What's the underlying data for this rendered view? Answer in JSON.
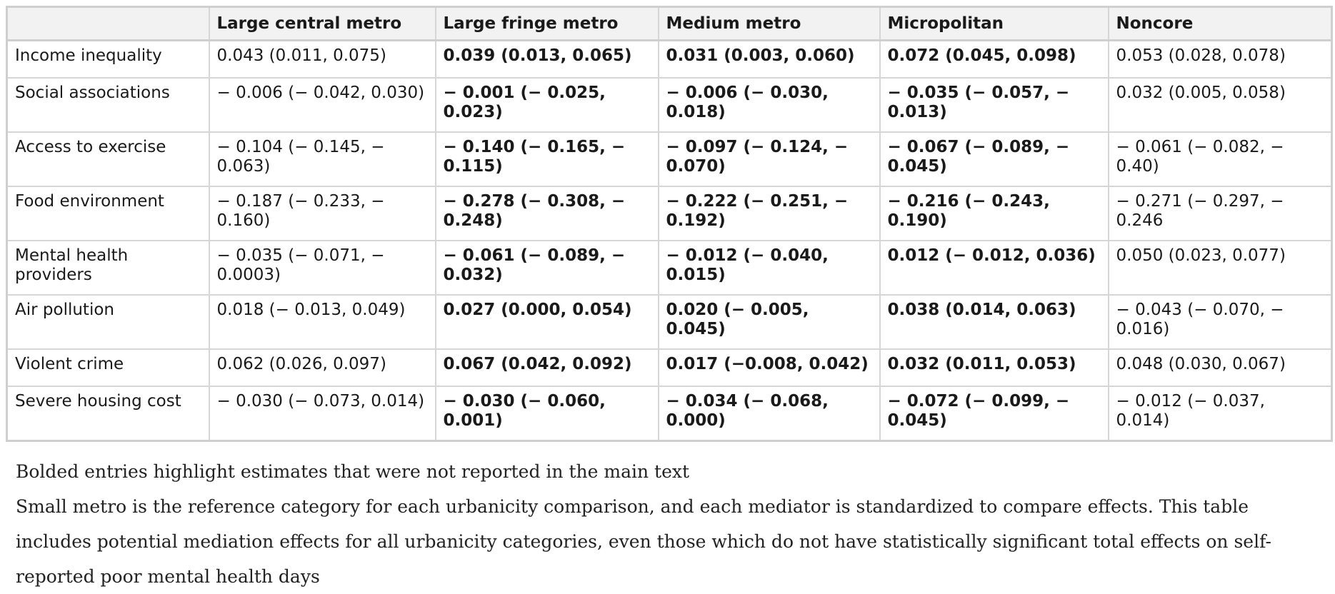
{
  "table": {
    "headers": [
      "",
      "Large central metro",
      "Large fringe metro",
      "Medium metro",
      "Micropolitan",
      "Noncore"
    ],
    "rows": [
      {
        "label": "Income inequality",
        "cells": [
          {
            "text": "0.043 (0.011, 0.075)",
            "bold": false
          },
          {
            "text": "0.039 (0.013, 0.065)",
            "bold": true
          },
          {
            "text": "0.031 (0.003, 0.060)",
            "bold": true
          },
          {
            "text": "0.072 (0.045, 0.098)",
            "bold": true
          },
          {
            "text": "0.053 (0.028, 0.078)",
            "bold": false
          }
        ]
      },
      {
        "label": "Social associations",
        "cells": [
          {
            "text": "− 0.006 (− 0.042, 0.030)",
            "bold": false
          },
          {
            "text": "− 0.001 (− 0.025, 0.023)",
            "bold": true
          },
          {
            "text": "− 0.006 (− 0.030, 0.018)",
            "bold": true
          },
          {
            "text": "− 0.035 (− 0.057, − 0.013)",
            "bold": true
          },
          {
            "text": "0.032 (0.005, 0.058)",
            "bold": false
          }
        ]
      },
      {
        "label": "Access to exercise",
        "cells": [
          {
            "text": "− 0.104 (− 0.145, − 0.063)",
            "bold": false
          },
          {
            "text": "− 0.140 (− 0.165, − 0.115)",
            "bold": true
          },
          {
            "text": "− 0.097 (− 0.124, − 0.070)",
            "bold": true
          },
          {
            "text": "− 0.067 (− 0.089, − 0.045)",
            "bold": true
          },
          {
            "text": "− 0.061 (− 0.082, − 0.40)",
            "bold": false
          }
        ]
      },
      {
        "label": "Food environment",
        "cells": [
          {
            "text": "− 0.187 (− 0.233, − 0.160)",
            "bold": false
          },
          {
            "text": "− 0.278 (− 0.308, − 0.248)",
            "bold": true
          },
          {
            "text": "− 0.222 (− 0.251, − 0.192)",
            "bold": true
          },
          {
            "text": "− 0.216 (− 0.243, 0.190)",
            "bold": true
          },
          {
            "text": "− 0.271 (− 0.297, − 0.246",
            "bold": false
          }
        ]
      },
      {
        "label": "Mental health providers",
        "cells": [
          {
            "text": "− 0.035 (− 0.071, − 0.0003)",
            "bold": false
          },
          {
            "text": "− 0.061 (− 0.089, − 0.032)",
            "bold": true
          },
          {
            "text": "− 0.012 (− 0.040, 0.015)",
            "bold": true
          },
          {
            "text": "0.012 (− 0.012, 0.036)",
            "bold": true
          },
          {
            "text": "0.050 (0.023, 0.077)",
            "bold": false
          }
        ]
      },
      {
        "label": "Air pollution",
        "cells": [
          {
            "text": "0.018 (− 0.013, 0.049)",
            "bold": false
          },
          {
            "text": "0.027 (0.000, 0.054)",
            "bold": true
          },
          {
            "text": "0.020 (− 0.005, 0.045)",
            "bold": true
          },
          {
            "text": "0.038 (0.014, 0.063)",
            "bold": true
          },
          {
            "text": "− 0.043 (− 0.070, − 0.016)",
            "bold": false
          }
        ]
      },
      {
        "label": "Violent crime",
        "cells": [
          {
            "text": "0.062 (0.026, 0.097)",
            "bold": false
          },
          {
            "text": "0.067 (0.042, 0.092)",
            "bold": true
          },
          {
            "text": "0.017 (−0.008, 0.042)",
            "bold": true
          },
          {
            "text": "0.032 (0.011, 0.053)",
            "bold": true
          },
          {
            "text": "0.048 (0.030, 0.067)",
            "bold": false
          }
        ]
      },
      {
        "label": "Severe housing cost",
        "cells": [
          {
            "text": "− 0.030 (− 0.073, 0.014)",
            "bold": false
          },
          {
            "text": "− 0.030 (− 0.060, 0.001)",
            "bold": true
          },
          {
            "text": "− 0.034 (− 0.068, 0.000)",
            "bold": true
          },
          {
            "text": "− 0.072 (− 0.099, − 0.045)",
            "bold": true
          },
          {
            "text": "− 0.012 (− 0.037, 0.014)",
            "bold": false
          }
        ]
      }
    ]
  },
  "notes": [
    "Bolded entries highlight estimates that were not reported in the main text",
    "Small metro is the reference category for each urbanicity comparison, and each mediator is standardized to compare effects. This table includes potential mediation effects for all urbanicity categories, even those which do not have statistically significant total effects on self-reported poor mental health days"
  ]
}
